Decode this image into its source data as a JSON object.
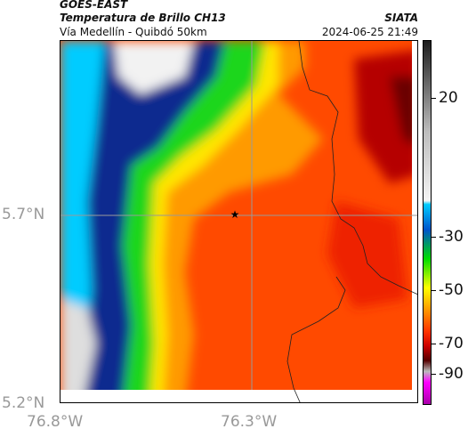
{
  "header": {
    "satellite": "GOES-EAST",
    "product": "Temperatura de Brillo CH13",
    "region": "Vía Medellín - Quibdó 50km",
    "agency": "SIATA",
    "datetime": "2024-06-25 21:49"
  },
  "map": {
    "lat_labels": [
      "5.7°N",
      "5.2°N"
    ],
    "lon_labels": [
      "76.8°W",
      "76.3°W"
    ],
    "marker": "star-marker",
    "cloud_top_temperature_palette": [
      "#ffffff",
      "#d8d8d8",
      "#00ccff",
      "#0066ee",
      "#0a2a88",
      "#00dd00",
      "#ffff00",
      "#ff9900",
      "#ff4400",
      "#dd1100",
      "#990000"
    ]
  },
  "colorbar": {
    "labels": [
      "20",
      "-30",
      "-50",
      "-70",
      "-90"
    ],
    "colors": [
      "#f4f4f4",
      "#bdbdbd",
      "#6e6e6e",
      "#1c1c1c",
      "#00ccff",
      "#0055cc",
      "#00dd00",
      "#ffff00",
      "#ff9900",
      "#ff3300",
      "#cc0000",
      "#550000",
      "#bbbbbb",
      "#ff00ff",
      "#aa00aa"
    ]
  }
}
